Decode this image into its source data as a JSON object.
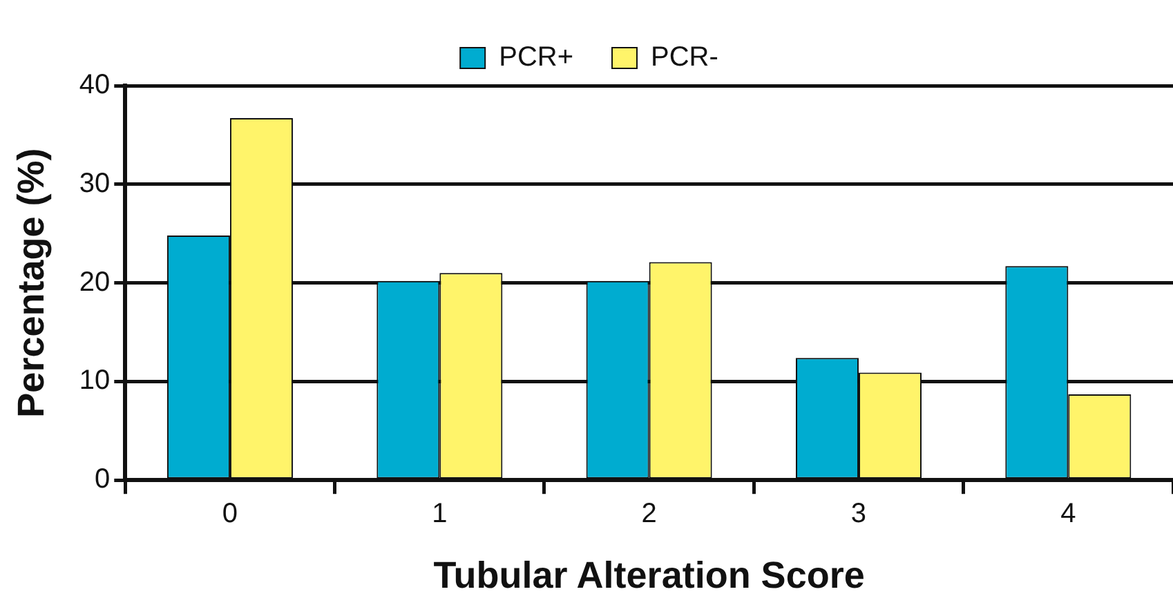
{
  "chart_data": {
    "type": "bar",
    "xlabel": "Tubular Alteration Score",
    "ylabel": "Percentage (%)",
    "categories": [
      "0",
      "1",
      "2",
      "3",
      "4"
    ],
    "series": [
      {
        "name": "PCR+",
        "color": "#00acd0",
        "values": [
          24.8,
          20.2,
          20.2,
          12.4,
          21.7
        ]
      },
      {
        "name": "PCR-",
        "color": "#fff46a",
        "values": [
          36.7,
          21.0,
          22.1,
          10.9,
          8.7
        ]
      }
    ],
    "ylim": [
      0,
      40
    ],
    "yticks": [
      0,
      10,
      20,
      30,
      40
    ],
    "grid": "y",
    "legend": "top"
  }
}
